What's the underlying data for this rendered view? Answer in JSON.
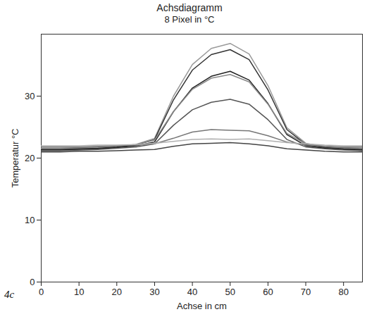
{
  "chart_data": {
    "type": "line",
    "title": "Achsdiagramm",
    "subtitle": "8 Pixel in °C",
    "x_label": "Achse in cm",
    "y_label": "Temperatur °C",
    "panel_label": "4c",
    "x": [
      0,
      5,
      10,
      15,
      20,
      25,
      30,
      35,
      40,
      45,
      50,
      55,
      60,
      65,
      70,
      75,
      80,
      85
    ],
    "series": [
      {
        "color": "#9a9a9a",
        "values": [
          21.5,
          21.5,
          21.6,
          21.7,
          21.9,
          22.2,
          23.2,
          30.0,
          35.1,
          37.7,
          38.5,
          36.8,
          31.7,
          24.9,
          22.4,
          21.8,
          21.6,
          21.5
        ]
      },
      {
        "color": "#333333",
        "values": [
          21.4,
          21.4,
          21.5,
          21.6,
          21.8,
          22.1,
          23.0,
          29.4,
          34.2,
          36.7,
          37.5,
          35.9,
          31.0,
          24.6,
          22.2,
          21.7,
          21.5,
          21.4
        ]
      },
      {
        "color": "#222222",
        "values": [
          21.3,
          21.3,
          21.4,
          21.5,
          21.7,
          22.0,
          22.6,
          27.5,
          31.3,
          33.2,
          34.0,
          32.6,
          28.8,
          23.8,
          22.0,
          21.6,
          21.4,
          21.3
        ]
      },
      {
        "color": "#8a8a8a",
        "values": [
          21.6,
          21.6,
          21.7,
          21.8,
          22.0,
          22.2,
          22.9,
          27.5,
          31.1,
          32.9,
          33.5,
          32.3,
          28.7,
          24.0,
          22.3,
          21.9,
          21.7,
          21.6
        ]
      },
      {
        "color": "#555555",
        "values": [
          21.2,
          21.2,
          21.3,
          21.4,
          21.6,
          21.8,
          22.3,
          25.3,
          27.8,
          29.0,
          29.5,
          28.7,
          26.2,
          23.0,
          21.8,
          21.5,
          21.3,
          21.2
        ]
      },
      {
        "color": "#777777",
        "values": [
          21.8,
          21.8,
          21.8,
          21.9,
          22.0,
          22.1,
          22.3,
          23.2,
          24.2,
          24.6,
          24.5,
          24.4,
          23.6,
          22.6,
          22.1,
          21.9,
          21.8,
          21.8
        ]
      },
      {
        "color": "#444444",
        "values": [
          21.0,
          21.0,
          21.1,
          21.1,
          21.2,
          21.3,
          21.4,
          21.9,
          22.3,
          22.4,
          22.5,
          22.3,
          22.0,
          21.5,
          21.3,
          21.1,
          21.0,
          21.0
        ]
      },
      {
        "color": "#b0b0b0",
        "values": [
          22.0,
          22.0,
          22.0,
          22.1,
          22.1,
          22.2,
          22.4,
          22.7,
          23.0,
          23.1,
          23.0,
          23.1,
          22.8,
          22.5,
          22.3,
          22.1,
          22.0,
          22.0
        ]
      }
    ],
    "xlim": [
      0,
      85
    ],
    "xticks": [
      0,
      10,
      20,
      30,
      40,
      50,
      60,
      70,
      80
    ],
    "ylim": [
      0,
      40
    ],
    "yticks": [
      0,
      10,
      20,
      30
    ],
    "grid": false
  }
}
